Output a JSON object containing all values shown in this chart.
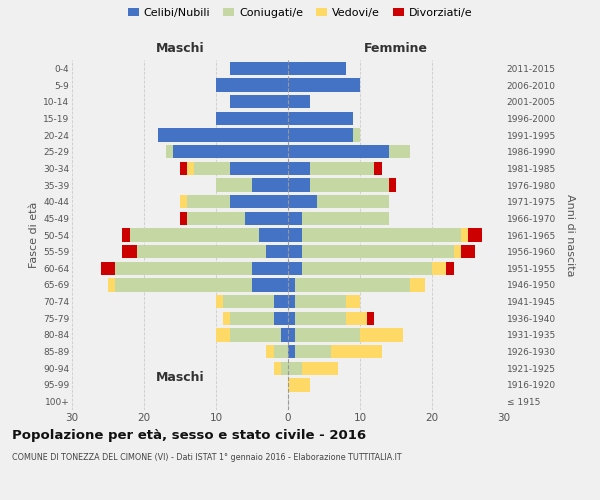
{
  "age_groups": [
    "100+",
    "95-99",
    "90-94",
    "85-89",
    "80-84",
    "75-79",
    "70-74",
    "65-69",
    "60-64",
    "55-59",
    "50-54",
    "45-49",
    "40-44",
    "35-39",
    "30-34",
    "25-29",
    "20-24",
    "15-19",
    "10-14",
    "5-9",
    "0-4"
  ],
  "birth_years": [
    "≤ 1915",
    "1916-1920",
    "1921-1925",
    "1926-1930",
    "1931-1935",
    "1936-1940",
    "1941-1945",
    "1946-1950",
    "1951-1955",
    "1956-1960",
    "1961-1965",
    "1966-1970",
    "1971-1975",
    "1976-1980",
    "1981-1985",
    "1986-1990",
    "1991-1995",
    "1996-2000",
    "2001-2005",
    "2006-2010",
    "2011-2015"
  ],
  "colors": {
    "celibe": "#4472c4",
    "coniugato": "#c5d8a4",
    "vedovo": "#ffd966",
    "divorziato": "#cc0000"
  },
  "maschi": {
    "celibe": [
      0,
      0,
      0,
      0,
      1,
      2,
      2,
      5,
      5,
      3,
      4,
      6,
      8,
      5,
      8,
      16,
      18,
      10,
      8,
      10,
      8
    ],
    "coniugato": [
      0,
      0,
      1,
      2,
      7,
      6,
      7,
      19,
      19,
      18,
      18,
      8,
      6,
      5,
      5,
      1,
      0,
      0,
      0,
      0,
      0
    ],
    "vedovo": [
      0,
      0,
      1,
      1,
      2,
      1,
      1,
      1,
      0,
      0,
      0,
      0,
      1,
      0,
      1,
      0,
      0,
      0,
      0,
      0,
      0
    ],
    "divorziato": [
      0,
      0,
      0,
      0,
      0,
      0,
      0,
      0,
      2,
      2,
      1,
      1,
      0,
      0,
      1,
      0,
      0,
      0,
      0,
      0,
      0
    ]
  },
  "femmine": {
    "nubile": [
      0,
      0,
      0,
      1,
      1,
      1,
      1,
      1,
      2,
      2,
      2,
      2,
      4,
      3,
      3,
      14,
      9,
      9,
      3,
      10,
      8
    ],
    "coniugata": [
      0,
      0,
      2,
      5,
      9,
      7,
      7,
      16,
      18,
      21,
      22,
      12,
      10,
      11,
      9,
      3,
      1,
      0,
      0,
      0,
      0
    ],
    "vedova": [
      0,
      3,
      5,
      7,
      6,
      3,
      2,
      2,
      2,
      1,
      1,
      0,
      0,
      0,
      0,
      0,
      0,
      0,
      0,
      0,
      0
    ],
    "divorziata": [
      0,
      0,
      0,
      0,
      0,
      1,
      0,
      0,
      1,
      2,
      2,
      0,
      0,
      1,
      1,
      0,
      0,
      0,
      0,
      0,
      0
    ]
  },
  "xlim": 30,
  "title": "Popolazione per età, sesso e stato civile - 2016",
  "subtitle": "COMUNE DI TONEZZA DEL CIMONE (VI) - Dati ISTAT 1° gennaio 2016 - Elaborazione TUTTITALIA.IT",
  "ylabel_left": "Fasce di età",
  "ylabel_right": "Anni di nascita",
  "xlabel_left": "Maschi",
  "xlabel_right": "Femmine",
  "legend_labels": [
    "Celibi/Nubili",
    "Coniugati/e",
    "Vedovi/e",
    "Divorziati/e"
  ],
  "bg_color": "#f0f0f0"
}
